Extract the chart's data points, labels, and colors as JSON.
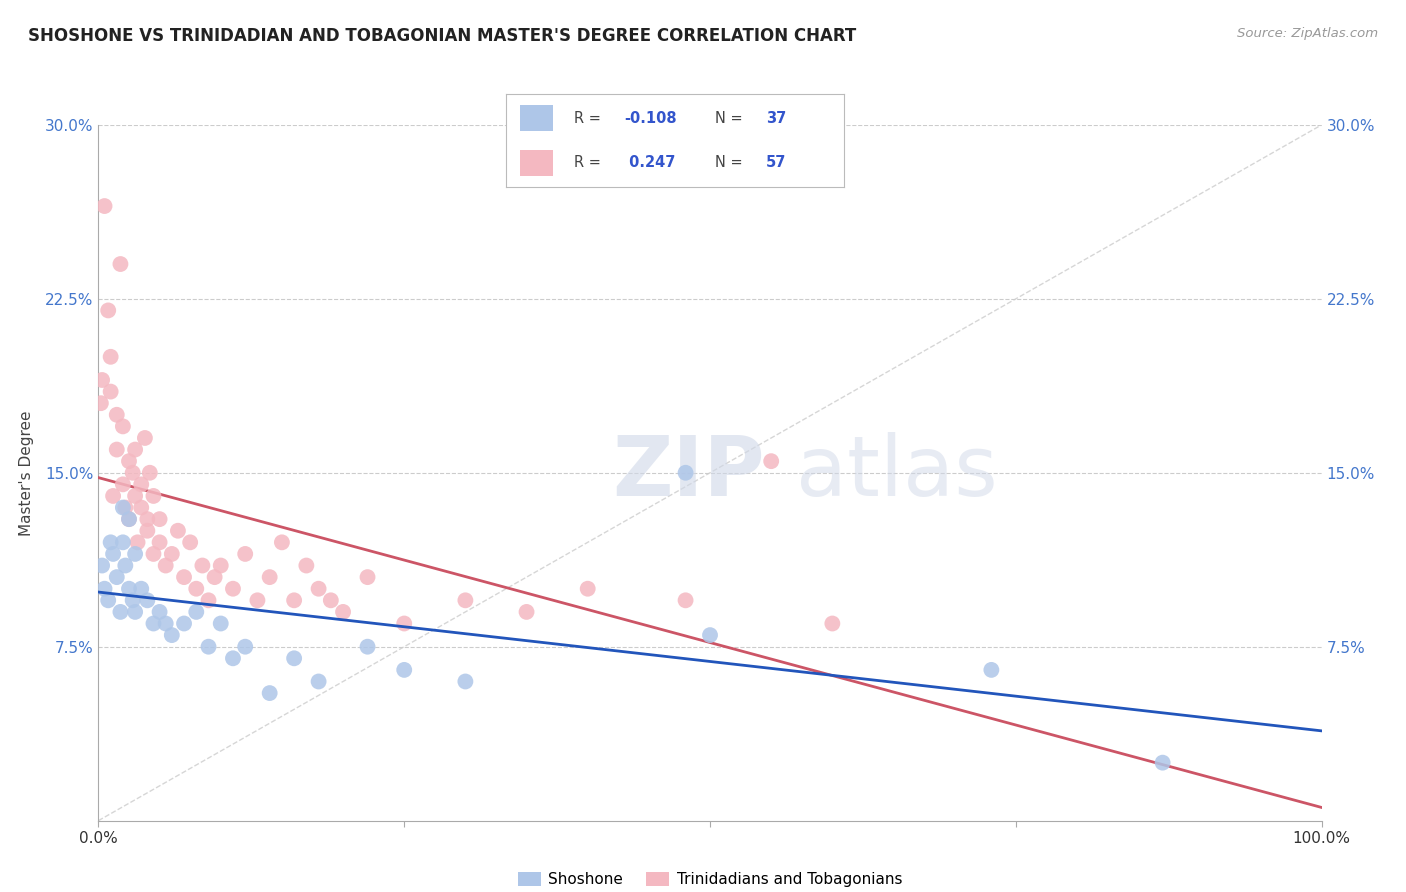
{
  "title": "SHOSHONE VS TRINIDADIAN AND TOBAGONIAN MASTER'S DEGREE CORRELATION CHART",
  "source": "Source: ZipAtlas.com",
  "ylabel": "Master's Degree",
  "watermark_text": "ZIP",
  "watermark_text2": "atlas",
  "xlim": [
    0,
    100
  ],
  "ylim": [
    0,
    30
  ],
  "xtick_positions": [
    0,
    25,
    50,
    75,
    100
  ],
  "xticklabels": [
    "0.0%",
    "",
    "",
    "",
    "100.0%"
  ],
  "ytick_positions": [
    0,
    7.5,
    15,
    22.5,
    30
  ],
  "yticklabels_left": [
    "0.0%",
    "7.5%",
    "15.0%",
    "22.5%",
    "30.0%"
  ],
  "yticklabels_right": [
    "",
    "7.5%",
    "15.0%",
    "22.5%",
    "30.0%"
  ],
  "grid_color": "#cccccc",
  "background_color": "#ffffff",
  "shoshone_color": "#aec6e8",
  "trinidadian_color": "#f4b8c1",
  "shoshone_line_color": "#2255bb",
  "trinidadian_line_color": "#cc5566",
  "tick_color": "#4477cc",
  "R_shoshone": -0.108,
  "N_shoshone": 37,
  "R_trinidadian": 0.247,
  "N_trinidadian": 57,
  "legend_color": "#3355cc",
  "shoshone_x": [
    0.3,
    0.5,
    0.8,
    1.0,
    1.2,
    1.5,
    1.8,
    2.0,
    2.0,
    2.2,
    2.5,
    2.5,
    2.8,
    3.0,
    3.0,
    3.5,
    4.0,
    4.5,
    5.0,
    5.5,
    6.0,
    7.0,
    8.0,
    9.0,
    10.0,
    11.0,
    12.0,
    14.0,
    16.0,
    18.0,
    22.0,
    25.0,
    30.0,
    48.0,
    50.0,
    73.0,
    87.0
  ],
  "shoshone_y": [
    11.0,
    10.0,
    9.5,
    12.0,
    11.5,
    10.5,
    9.0,
    13.5,
    12.0,
    11.0,
    13.0,
    10.0,
    9.5,
    11.5,
    9.0,
    10.0,
    9.5,
    8.5,
    9.0,
    8.5,
    8.0,
    8.5,
    9.0,
    7.5,
    8.5,
    7.0,
    7.5,
    5.5,
    7.0,
    6.0,
    7.5,
    6.5,
    6.0,
    15.0,
    8.0,
    6.5,
    2.5
  ],
  "trinidadian_x": [
    0.2,
    0.3,
    0.5,
    0.8,
    1.0,
    1.0,
    1.2,
    1.5,
    1.5,
    1.8,
    2.0,
    2.0,
    2.2,
    2.5,
    2.5,
    2.8,
    3.0,
    3.0,
    3.2,
    3.5,
    3.5,
    3.8,
    4.0,
    4.0,
    4.2,
    4.5,
    4.5,
    5.0,
    5.0,
    5.5,
    6.0,
    6.5,
    7.0,
    7.5,
    8.0,
    8.5,
    9.0,
    9.5,
    10.0,
    11.0,
    12.0,
    13.0,
    14.0,
    15.0,
    16.0,
    17.0,
    18.0,
    19.0,
    20.0,
    22.0,
    25.0,
    30.0,
    35.0,
    40.0,
    48.0,
    55.0,
    60.0
  ],
  "trinidadian_y": [
    18.0,
    19.0,
    26.5,
    22.0,
    20.0,
    18.5,
    14.0,
    17.5,
    16.0,
    24.0,
    14.5,
    17.0,
    13.5,
    13.0,
    15.5,
    15.0,
    14.0,
    16.0,
    12.0,
    13.5,
    14.5,
    16.5,
    13.0,
    12.5,
    15.0,
    11.5,
    14.0,
    13.0,
    12.0,
    11.0,
    11.5,
    12.5,
    10.5,
    12.0,
    10.0,
    11.0,
    9.5,
    10.5,
    11.0,
    10.0,
    11.5,
    9.5,
    10.5,
    12.0,
    9.5,
    11.0,
    10.0,
    9.5,
    9.0,
    10.5,
    8.5,
    9.5,
    9.0,
    10.0,
    9.5,
    15.5,
    8.5
  ]
}
